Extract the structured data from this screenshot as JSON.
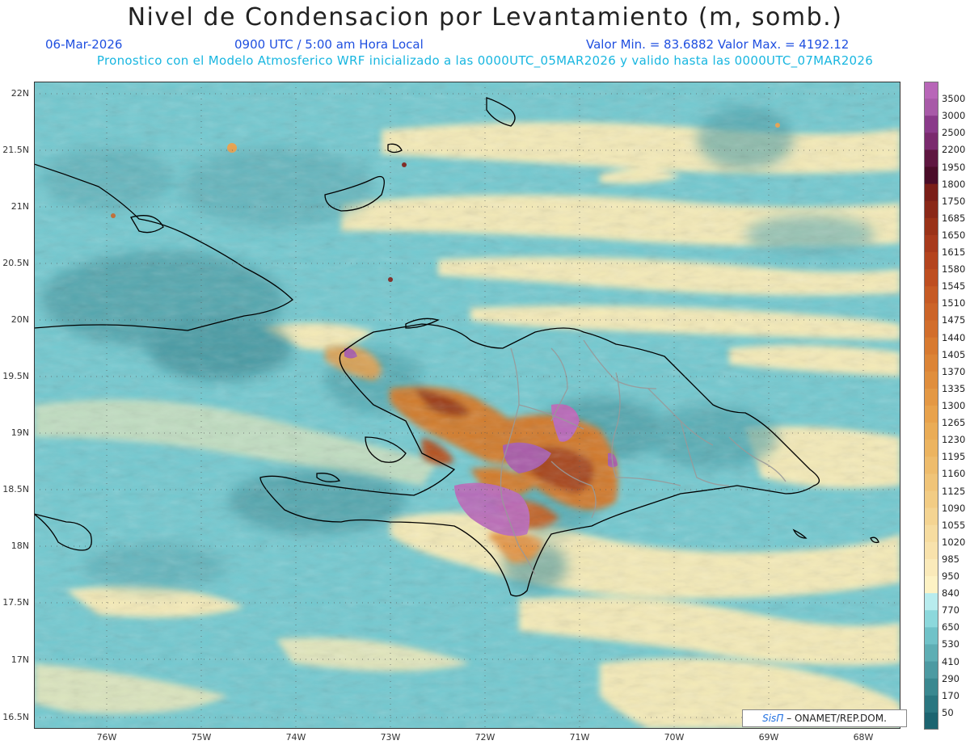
{
  "header": {
    "title": "Nivel de Condensacion por Levantamiento (m, somb.)",
    "date": "06-Mar-2026",
    "time": "0900 UTC / 5:00 am Hora Local",
    "minmax": "Valor Min. = 83.6882  Valor Max. = 4192.12",
    "forecast_line": "Pronostico con el Modelo Atmosferico WRF inicializado a las 0000UTC_05MAR2026 y valido hasta las  0000UTC_07MAR2026"
  },
  "axes": {
    "lat_labels": [
      "22N",
      "21.5N",
      "21N",
      "20.5N",
      "20N",
      "19.5N",
      "19N",
      "18.5N",
      "18N",
      "17.5N",
      "17N",
      "16.5N"
    ],
    "lon_labels": [
      "76W",
      "75W",
      "74W",
      "73W",
      "72W",
      "71W",
      "70W",
      "69W",
      "68W"
    ]
  },
  "colorbar": {
    "labels": [
      "3500",
      "3000",
      "2500",
      "2200",
      "1950",
      "1800",
      "1750",
      "1685",
      "1650",
      "1615",
      "1580",
      "1545",
      "1510",
      "1475",
      "1440",
      "1405",
      "1370",
      "1335",
      "1300",
      "1265",
      "1230",
      "1195",
      "1160",
      "1125",
      "1090",
      "1055",
      "1020",
      "985",
      "950",
      "840",
      "770",
      "650",
      "530",
      "410",
      "290",
      "170",
      "50"
    ],
    "colors": [
      "#b866b8",
      "#a85aa8",
      "#8a3a8a",
      "#7a2a6e",
      "#5e1640",
      "#4a0c28",
      "#7a1e18",
      "#8a2818",
      "#9a3218",
      "#a83a1c",
      "#b4441e",
      "#be4e20",
      "#c65a24",
      "#cc6428",
      "#d26e2c",
      "#d87a30",
      "#dc8436",
      "#e08e3c",
      "#e49844",
      "#e8a24c",
      "#eaac56",
      "#ecb460",
      "#eebc6c",
      "#f0c478",
      "#f2cc84",
      "#f4d492",
      "#f6dca0",
      "#f8e2ac",
      "#faeaba",
      "#fdf2c4",
      "#b8ecee",
      "#8cd8dc",
      "#70c2c8",
      "#5eaeb4",
      "#4c9aa2",
      "#3a8890",
      "#2a7680",
      "#1c6470"
    ]
  },
  "credit": {
    "brand": "SisΠ",
    "text": "– ONAMET/REP.DOM."
  }
}
